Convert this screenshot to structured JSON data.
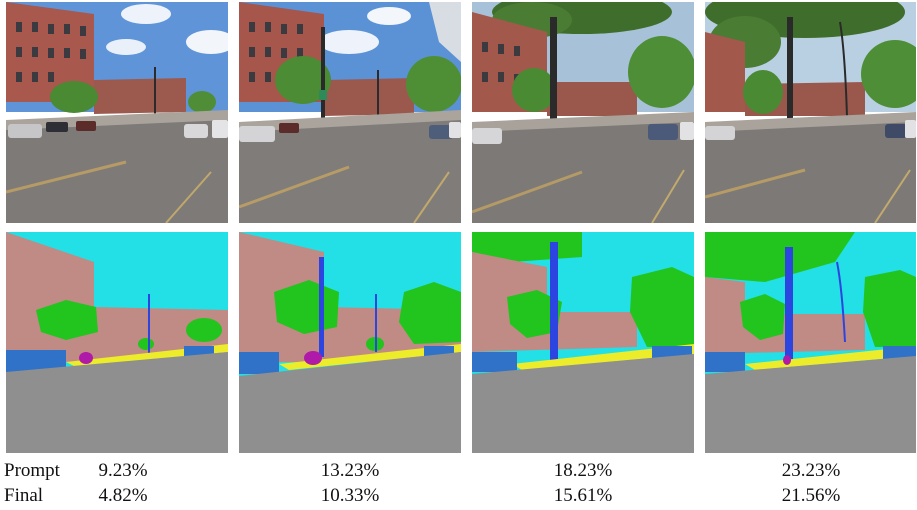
{
  "rows": {
    "prompt_label": "Prompt",
    "final_label": "Final"
  },
  "columns": [
    {
      "prompt_value": "9.23%",
      "final_value": "4.82%"
    },
    {
      "prompt_value": "13.23%",
      "final_value": "10.33%"
    },
    {
      "prompt_value": "18.23%",
      "final_value": "15.61%"
    },
    {
      "prompt_value": "23.23%",
      "final_value": "21.56%"
    }
  ],
  "segmentation_colors": {
    "sky": "#22e0e6",
    "building": "#c08a85",
    "vegetation": "#22c41e",
    "road": "#8f8f8f",
    "sidewalk": "#ecec2a",
    "car": "#2f72c7",
    "pole": "#2c45e0",
    "person": "#b01aa8"
  }
}
